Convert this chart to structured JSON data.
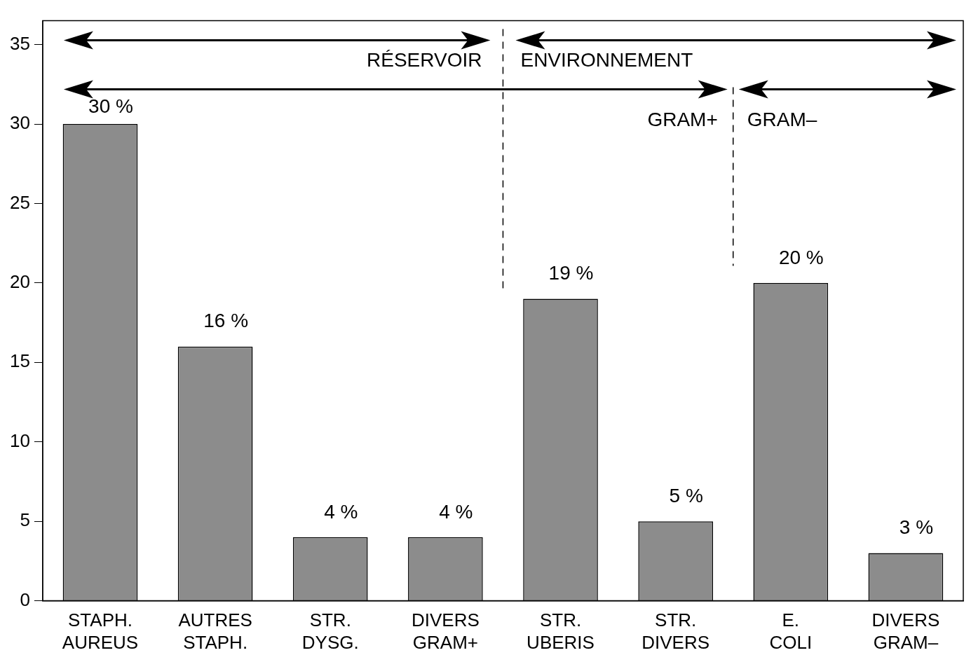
{
  "chart_data": {
    "type": "bar",
    "categories": [
      "STAPH. AUREUS",
      "AUTRES STAPH.",
      "STR. DYSG.",
      "DIVERS GRAM+",
      "STR. UBERIS",
      "STR. DIVERS",
      "E. COLI",
      "DIVERS GRAM–"
    ],
    "values": [
      30,
      16,
      4,
      4,
      19,
      5,
      20,
      3
    ],
    "value_labels": [
      "30 %",
      "16 %",
      "4 %",
      "4 %",
      "19 %",
      "5 %",
      "20 %",
      "3 %"
    ],
    "color": "#8c8c8c",
    "ylim": [
      0,
      36.5
    ],
    "yticks": [
      0,
      5,
      10,
      15,
      20,
      25,
      30,
      35
    ],
    "grid": false,
    "legend": false,
    "annotations": [
      "RÉSERVOIR",
      "ENVIRONNEMENT",
      "GRAM+",
      "GRAM–"
    ]
  }
}
